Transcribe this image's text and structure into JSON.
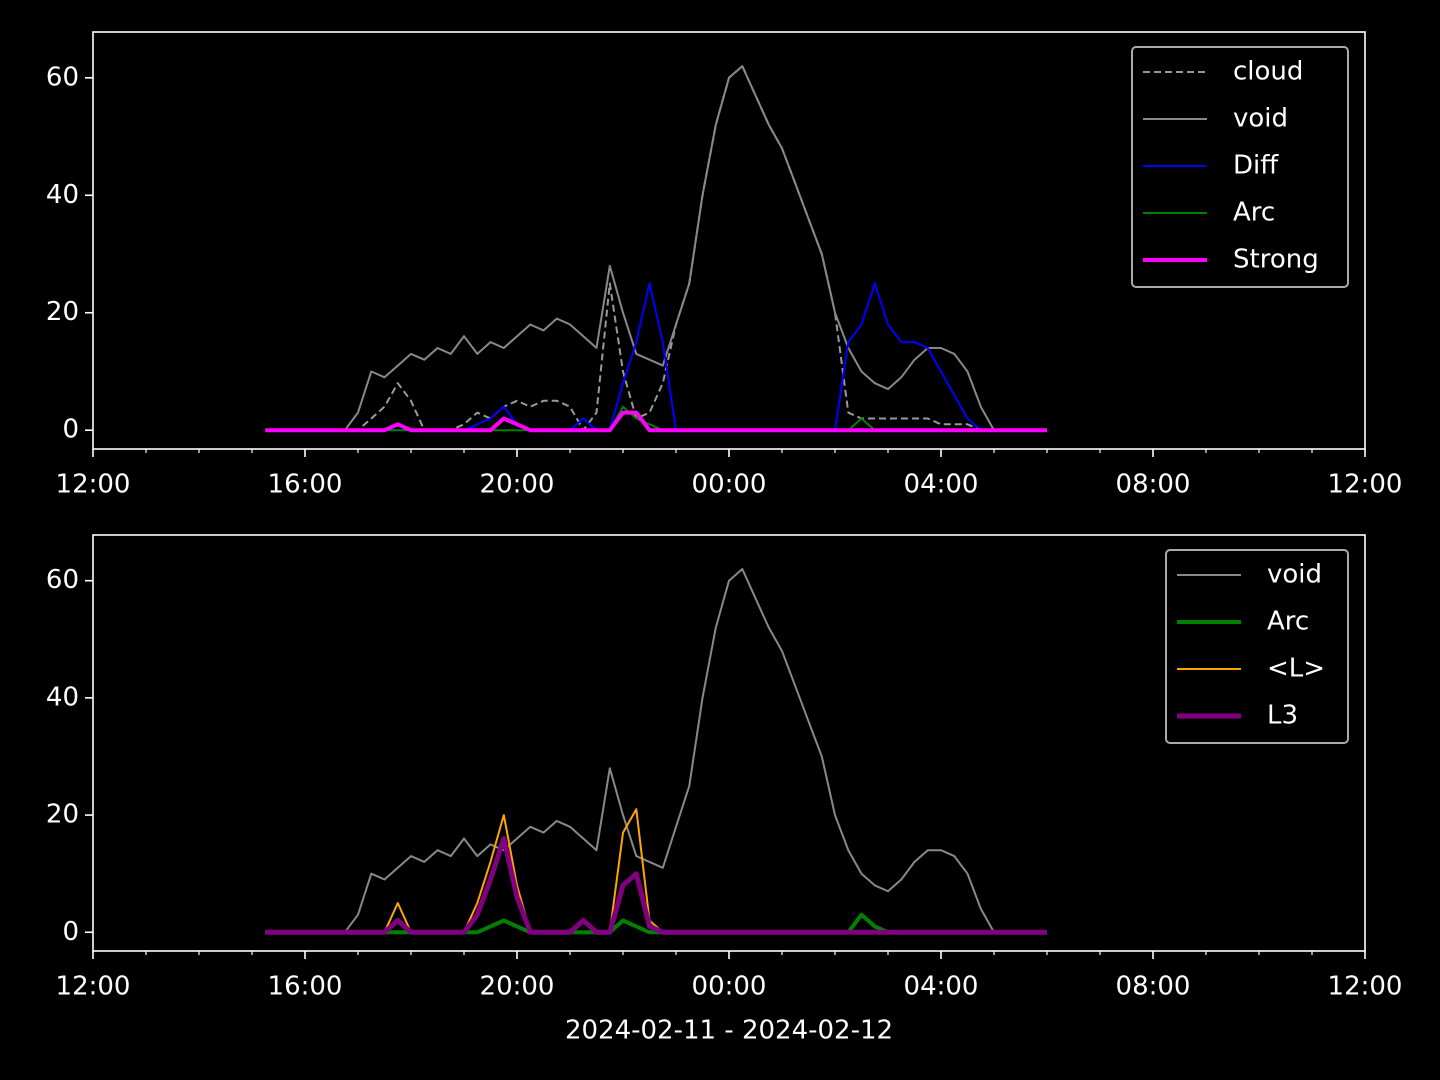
{
  "chart_data": [
    {
      "type": "line",
      "x": [
        3.25,
        3.5,
        3.75,
        4,
        4.25,
        4.5,
        4.75,
        5,
        5.25,
        5.5,
        5.75,
        6,
        6.25,
        6.5,
        6.75,
        7,
        7.25,
        7.5,
        7.75,
        8,
        8.25,
        8.5,
        8.75,
        9,
        9.25,
        9.5,
        9.75,
        10,
        10.25,
        10.5,
        10.75,
        11,
        11.25,
        11.5,
        11.75,
        12,
        12.25,
        12.5,
        12.75,
        13,
        13.25,
        13.5,
        13.75,
        14,
        14.25,
        14.5,
        14.75,
        15,
        15.25,
        15.5,
        15.75,
        16,
        16.25,
        16.5,
        16.75,
        17,
        17.25,
        17.5,
        17.75,
        18
      ],
      "xlim": [
        0,
        24
      ],
      "xticks": [
        {
          "value": 0,
          "label": "12:00"
        },
        {
          "value": 4,
          "label": "16:00"
        },
        {
          "value": 8,
          "label": "20:00"
        },
        {
          "value": 12,
          "label": "00:00"
        },
        {
          "value": 16,
          "label": "04:00"
        },
        {
          "value": 20,
          "label": "08:00"
        },
        {
          "value": 24,
          "label": "12:00"
        }
      ],
      "xminorticks": [
        1,
        2,
        3,
        5,
        6,
        7,
        9,
        10,
        11,
        13,
        14,
        15,
        17,
        18,
        19,
        21,
        22,
        23
      ],
      "ylim": [
        -3.2,
        67.8
      ],
      "yticks": [
        0,
        20,
        40,
        60
      ],
      "legend": "upper right",
      "series": [
        {
          "name": "cloud",
          "color": "#999999",
          "linestyle": "dashed",
          "width": 2,
          "values": [
            0,
            0,
            0,
            0,
            0,
            0,
            0,
            0,
            2,
            4,
            8,
            5,
            0,
            0,
            0,
            1,
            3,
            2,
            4,
            5,
            4,
            5,
            5,
            4,
            0,
            3,
            25,
            10,
            2,
            3,
            8,
            18,
            25,
            40,
            52,
            60,
            62,
            57,
            52,
            48,
            42,
            36,
            30,
            20,
            3,
            2,
            2,
            2,
            2,
            2,
            2,
            1,
            1,
            1,
            0,
            0,
            0,
            0,
            0,
            0
          ]
        },
        {
          "name": "void",
          "color": "#888888",
          "linestyle": "solid",
          "width": 2,
          "values": [
            0,
            0,
            0,
            0,
            0,
            0,
            0,
            3,
            10,
            9,
            11,
            13,
            12,
            14,
            13,
            16,
            13,
            15,
            14,
            16,
            18,
            17,
            19,
            18,
            16,
            14,
            28,
            20,
            13,
            12,
            11,
            18,
            25,
            40,
            52,
            60,
            62,
            57,
            52,
            48,
            42,
            36,
            30,
            20,
            14,
            10,
            8,
            7,
            9,
            12,
            14,
            14,
            13,
            10,
            4,
            0,
            0,
            0,
            0,
            0
          ]
        },
        {
          "name": "Diff",
          "color": "#0000ff",
          "linestyle": "solid",
          "width": 2,
          "values": [
            0,
            0,
            0,
            0,
            0,
            0,
            0,
            0,
            0,
            0,
            0,
            0,
            0,
            0,
            0,
            0,
            1,
            2,
            4,
            1,
            0,
            0,
            0,
            0,
            2,
            0,
            0,
            8,
            15,
            25,
            15,
            0,
            0,
            0,
            0,
            0,
            0,
            0,
            0,
            0,
            0,
            0,
            0,
            0,
            15,
            18,
            25,
            18,
            15,
            15,
            14,
            10,
            6,
            2,
            0,
            0,
            0,
            0,
            0,
            0
          ]
        },
        {
          "name": "Arc",
          "color": "#008000",
          "linestyle": "solid",
          "width": 2,
          "values": [
            0,
            0,
            0,
            0,
            0,
            0,
            0,
            0,
            0,
            0,
            0,
            0,
            0,
            0,
            0,
            0,
            0,
            0,
            0,
            0,
            0,
            0,
            0,
            0,
            0,
            0,
            0,
            4,
            2,
            1,
            0,
            0,
            0,
            0,
            0,
            0,
            0,
            0,
            0,
            0,
            0,
            0,
            0,
            0,
            0,
            2,
            0,
            0,
            0,
            0,
            0,
            0,
            0,
            0,
            0,
            0,
            0,
            0,
            0,
            0
          ]
        },
        {
          "name": "Strong",
          "color": "#ff00ff",
          "linestyle": "solid",
          "width": 4,
          "values": [
            0,
            0,
            0,
            0,
            0,
            0,
            0,
            0,
            0,
            0,
            1,
            0,
            0,
            0,
            0,
            0,
            0,
            0,
            2,
            1,
            0,
            0,
            0,
            0,
            0,
            0,
            0,
            3,
            3,
            0,
            0,
            0,
            0,
            0,
            0,
            0,
            0,
            0,
            0,
            0,
            0,
            0,
            0,
            0,
            0,
            0,
            0,
            0,
            0,
            0,
            0,
            0,
            0,
            0,
            0,
            0,
            0,
            0,
            0,
            0
          ]
        }
      ]
    },
    {
      "type": "line",
      "x": [
        3.25,
        3.5,
        3.75,
        4,
        4.25,
        4.5,
        4.75,
        5,
        5.25,
        5.5,
        5.75,
        6,
        6.25,
        6.5,
        6.75,
        7,
        7.25,
        7.5,
        7.75,
        8,
        8.25,
        8.5,
        8.75,
        9,
        9.25,
        9.5,
        9.75,
        10,
        10.25,
        10.5,
        10.75,
        11,
        11.25,
        11.5,
        11.75,
        12,
        12.25,
        12.5,
        12.75,
        13,
        13.25,
        13.5,
        13.75,
        14,
        14.25,
        14.5,
        14.75,
        15,
        15.25,
        15.5,
        15.75,
        16,
        16.25,
        16.5,
        16.75,
        17,
        17.25,
        17.5,
        17.75,
        18
      ],
      "x_label": "2024-02-11 - 2024-02-12",
      "xlim": [
        0,
        24
      ],
      "xticks": [
        {
          "value": 0,
          "label": "12:00"
        },
        {
          "value": 4,
          "label": "16:00"
        },
        {
          "value": 8,
          "label": "20:00"
        },
        {
          "value": 12,
          "label": "00:00"
        },
        {
          "value": 16,
          "label": "04:00"
        },
        {
          "value": 20,
          "label": "08:00"
        },
        {
          "value": 24,
          "label": "12:00"
        }
      ],
      "xminorticks": [
        1,
        2,
        3,
        5,
        6,
        7,
        9,
        10,
        11,
        13,
        14,
        15,
        17,
        18,
        19,
        21,
        22,
        23
      ],
      "ylim": [
        -3.2,
        67.8
      ],
      "yticks": [
        0,
        20,
        40,
        60
      ],
      "legend": "upper right",
      "series": [
        {
          "name": "void",
          "color": "#888888",
          "linestyle": "solid",
          "width": 2,
          "values": [
            0,
            0,
            0,
            0,
            0,
            0,
            0,
            3,
            10,
            9,
            11,
            13,
            12,
            14,
            13,
            16,
            13,
            15,
            14,
            16,
            18,
            17,
            19,
            18,
            16,
            14,
            28,
            20,
            13,
            12,
            11,
            18,
            25,
            40,
            52,
            60,
            62,
            57,
            52,
            48,
            42,
            36,
            30,
            20,
            14,
            10,
            8,
            7,
            9,
            12,
            14,
            14,
            13,
            10,
            4,
            0,
            0,
            0,
            0,
            0
          ]
        },
        {
          "name": "Arc",
          "color": "#008000",
          "linestyle": "solid",
          "width": 4,
          "values": [
            0,
            0,
            0,
            0,
            0,
            0,
            0,
            0,
            0,
            0,
            0,
            0,
            0,
            0,
            0,
            0,
            0,
            1,
            2,
            1,
            0,
            0,
            0,
            0,
            0,
            0,
            0,
            2,
            1,
            0,
            0,
            0,
            0,
            0,
            0,
            0,
            0,
            0,
            0,
            0,
            0,
            0,
            0,
            0,
            0,
            3,
            1,
            0,
            0,
            0,
            0,
            0,
            0,
            0,
            0,
            0,
            0,
            0,
            0,
            0
          ]
        },
        {
          "name": "<L>",
          "color": "#ffa500",
          "linestyle": "solid",
          "width": 2,
          "values": [
            0,
            0,
            0,
            0,
            0,
            0,
            0,
            0,
            0,
            0,
            5,
            0,
            0,
            0,
            0,
            0,
            5,
            12,
            20,
            8,
            0,
            0,
            0,
            0,
            2,
            0,
            0,
            17,
            21,
            2,
            0,
            0,
            0,
            0,
            0,
            0,
            0,
            0,
            0,
            0,
            0,
            0,
            0,
            0,
            0,
            0,
            0,
            0,
            0,
            0,
            0,
            0,
            0,
            0,
            0,
            0,
            0,
            0,
            0,
            0
          ]
        },
        {
          "name": "L3",
          "color": "#800080",
          "linestyle": "solid",
          "width": 5,
          "values": [
            0,
            0,
            0,
            0,
            0,
            0,
            0,
            0,
            0,
            0,
            2,
            0,
            0,
            0,
            0,
            0,
            3,
            9,
            16,
            6,
            0,
            0,
            0,
            0,
            2,
            0,
            0,
            8,
            10,
            1,
            0,
            0,
            0,
            0,
            0,
            0,
            0,
            0,
            0,
            0,
            0,
            0,
            0,
            0,
            0,
            0,
            0,
            0,
            0,
            0,
            0,
            0,
            0,
            0,
            0,
            0,
            0,
            0,
            0,
            0
          ]
        }
      ]
    }
  ]
}
